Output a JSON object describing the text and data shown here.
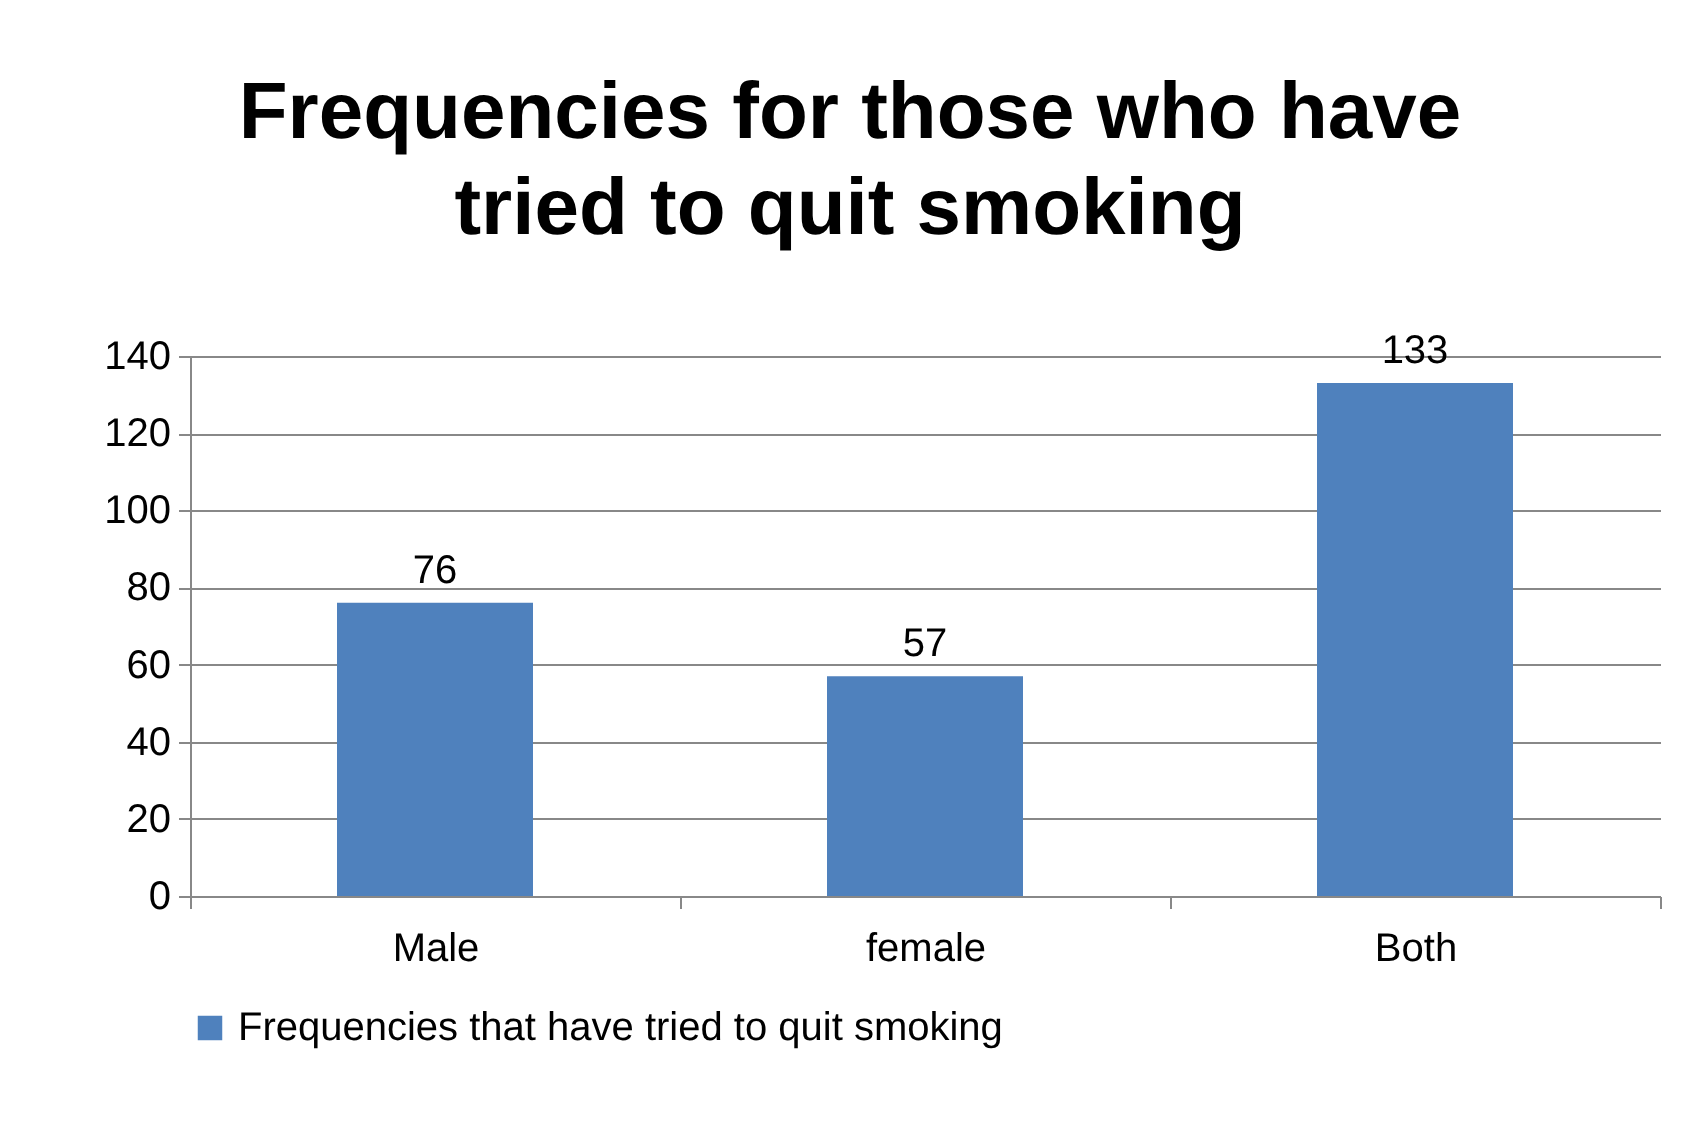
{
  "chart_data": {
    "type": "bar",
    "title": "Frequencies for those who have tried to quit smoking",
    "categories": [
      "Male",
      "female",
      "Both"
    ],
    "series": [
      {
        "name": "Frequencies that have tried to quit smoking",
        "color": "#4f81bd",
        "values": [
          76,
          57,
          133
        ]
      }
    ],
    "ylim": [
      0,
      140
    ],
    "yticks": [
      0,
      20,
      40,
      60,
      80,
      100,
      120,
      140
    ],
    "grid": "y",
    "legend": "bottom",
    "data_labels": true
  }
}
